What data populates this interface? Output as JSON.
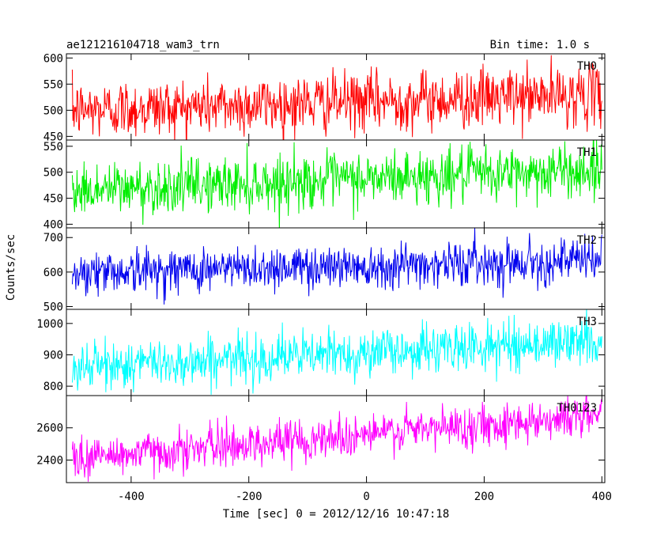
{
  "header": {
    "title": "ae121216104718_wam3_trn",
    "bin_time": "Bin time: 1.0 s"
  },
  "ylabel": "Counts/sec",
  "xlabel": "Time [sec] 0 = 2012/12/16 10:47:18",
  "colors": {
    "TH0": "#ff0000",
    "TH1": "#00ee00",
    "TH2": "#0000ee",
    "TH3": "#00ffff",
    "TH0123": "#ff00ff"
  },
  "chart_data": {
    "type": "line",
    "xlim": [
      -510,
      405
    ],
    "x_ticks": [
      -400,
      -200,
      0,
      200,
      400
    ],
    "x_tick_labels": [
      "-400",
      "-200",
      "0",
      "200",
      "400"
    ],
    "x_start": -500,
    "x_end": 400,
    "bin": 1.0,
    "panels": [
      {
        "name": "TH0",
        "ylim": [
          443,
          608
        ],
        "ticks": [
          450,
          500,
          550,
          600
        ],
        "tick_labels": [
          "450",
          "500",
          "550",
          "600"
        ],
        "trend_start": 500,
        "trend_end": 530,
        "noise_sd": 28
      },
      {
        "name": "TH1",
        "ylim": [
          393,
          562
        ],
        "ticks": [
          400,
          450,
          500,
          550
        ],
        "tick_labels": [
          "400",
          "450",
          "500",
          "550"
        ],
        "trend_start": 465,
        "trend_end": 505,
        "noise_sd": 26
      },
      {
        "name": "TH2",
        "ylim": [
          492,
          728
        ],
        "ticks": [
          500,
          600,
          700
        ],
        "tick_labels": [
          "500",
          "600",
          "700"
        ],
        "trend_start": 600,
        "trend_end": 635,
        "noise_sd": 32
      },
      {
        "name": "TH3",
        "ylim": [
          770,
          1045
        ],
        "ticks": [
          800,
          900,
          1000
        ],
        "tick_labels": [
          "800",
          "900",
          "1000"
        ],
        "trend_start": 860,
        "trend_end": 945,
        "noise_sd": 38
      },
      {
        "name": "TH0123",
        "ylim": [
          2260,
          2800
        ],
        "ticks": [
          2400,
          2600
        ],
        "tick_labels": [
          "2400",
          "2600"
        ],
        "trend_start": 2410,
        "trend_end": 2680,
        "noise_sd": 65
      }
    ]
  }
}
